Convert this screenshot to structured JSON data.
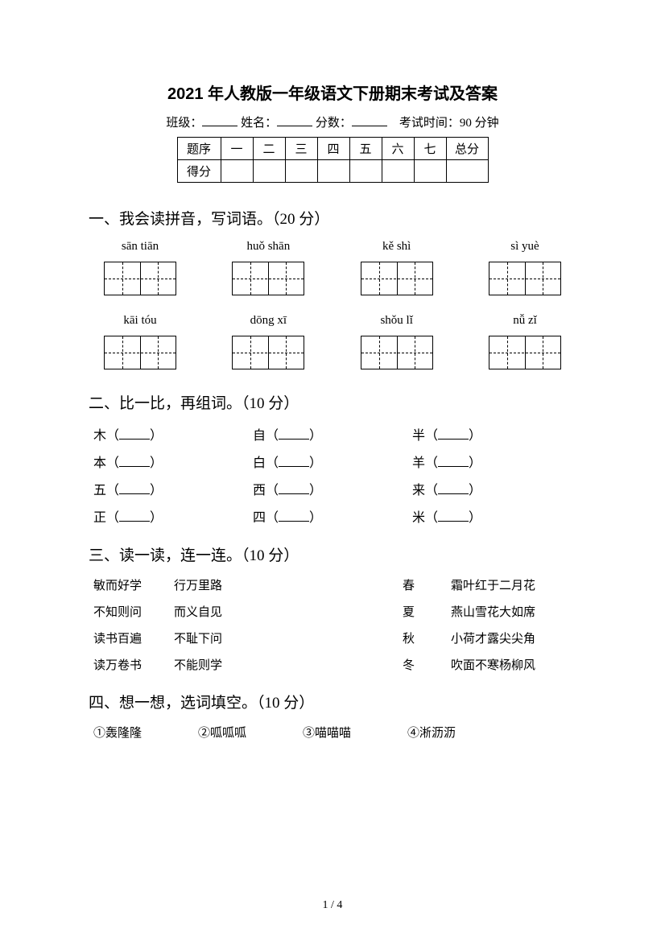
{
  "title": "2021 年人教版一年级语文下册期末考试及答案",
  "meta": {
    "class_label": "班级：",
    "name_label": "姓名：",
    "score_label": "分数：",
    "time_label": "考试时间：90 分钟"
  },
  "score_table": {
    "row1_header": "题序",
    "row2_header": "得分",
    "cols": [
      "一",
      "二",
      "三",
      "四",
      "五",
      "六",
      "七"
    ],
    "total": "总分"
  },
  "q1": {
    "title": "一、我会读拼音，写词语。（20 分）",
    "row1": [
      "sān tiān",
      "huǒ shān",
      "kě shì",
      "sì yuè"
    ],
    "row2": [
      "kāi tóu",
      "dōng xī",
      "shǒu lǐ",
      "nǚ zǐ"
    ]
  },
  "q2": {
    "title": "二、比一比，再组词。（10 分）",
    "rows": [
      [
        "木",
        "自",
        "半"
      ],
      [
        "本",
        "白",
        "羊"
      ],
      [
        "五",
        "西",
        "来"
      ],
      [
        "正",
        "四",
        "米"
      ]
    ]
  },
  "q3": {
    "title": "三、读一读，连一连。（10 分）",
    "left_a": [
      "敏而好学",
      "不知则问",
      "读书百遍",
      "读万卷书"
    ],
    "left_b": [
      "行万里路",
      "而义自见",
      "不耻下问",
      "不能则学"
    ],
    "right_a": [
      "春",
      "夏",
      "秋",
      "冬"
    ],
    "right_b": [
      "霜叶红于二月花",
      "燕山雪花大如席",
      "小荷才露尖尖角",
      "吹面不寒杨柳风"
    ]
  },
  "q4": {
    "title": "四、想一想，选词填空。（10 分）",
    "options": [
      "①轰隆隆",
      "②呱呱呱",
      "③喵喵喵",
      "④淅沥沥"
    ]
  },
  "footer": "1 / 4"
}
